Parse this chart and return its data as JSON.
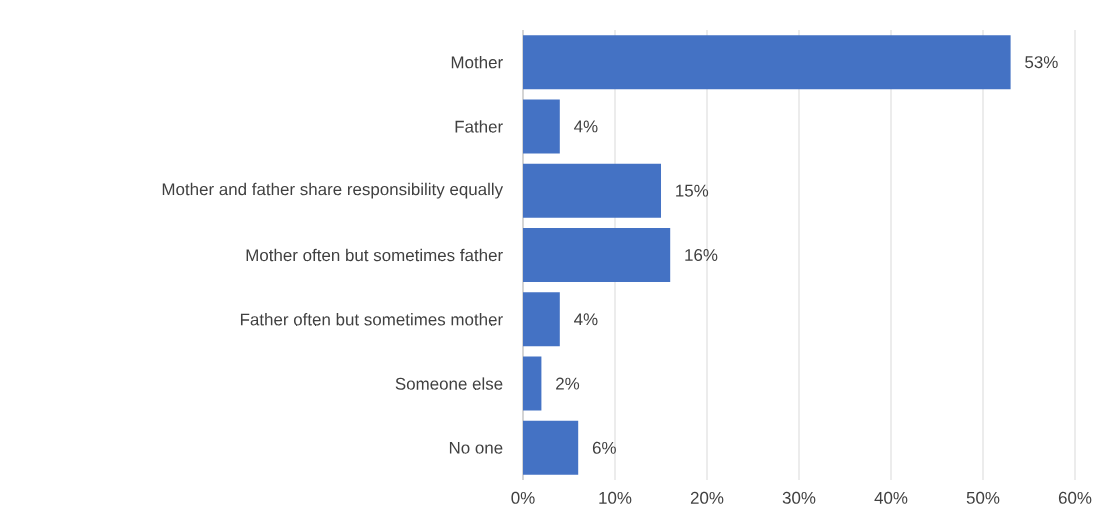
{
  "chart_data": {
    "type": "bar",
    "orientation": "horizontal",
    "categories": [
      "Mother",
      "Father",
      "Mother and father share responsibility equally",
      "Mother often but sometimes father",
      "Father often but sometimes mother",
      "Someone else",
      "No one"
    ],
    "values": [
      53,
      4,
      15,
      16,
      4,
      2,
      6
    ],
    "value_labels": [
      "53%",
      "4%",
      "15%",
      "16%",
      "4%",
      "2%",
      "6%"
    ],
    "color": "#4472c4",
    "xlim": [
      0,
      60
    ],
    "xticks": [
      {
        "value": 0,
        "label": "0%"
      },
      {
        "value": 10,
        "label": "10%"
      },
      {
        "value": 20,
        "label": "20%"
      },
      {
        "value": 30,
        "label": "30%"
      },
      {
        "value": 40,
        "label": "40%"
      },
      {
        "value": 50,
        "label": "50%"
      },
      {
        "value": 60,
        "label": "60%"
      }
    ],
    "grid": "x"
  }
}
